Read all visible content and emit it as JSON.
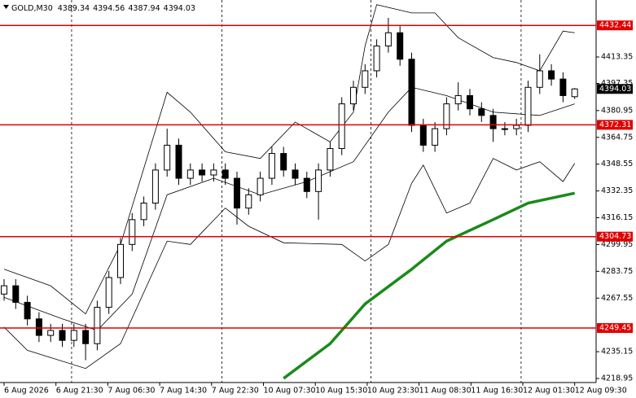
{
  "chart_data": {
    "type": "candlestick",
    "title": "GOLD,M30",
    "open": [
      4270,
      4275,
      4265,
      4255,
      4245,
      4248,
      4242,
      4248,
      4240,
      4262,
      4280,
      4300,
      4315,
      4325,
      4345,
      4360,
      4340,
      4345,
      4342,
      4345,
      4340,
      4322,
      4330,
      4340,
      4355,
      4345,
      4340,
      4332,
      4345,
      4358,
      4385,
      4395,
      4405,
      4420,
      4428,
      4412,
      4372,
      4360,
      4370,
      4385,
      4390,
      4382,
      4378,
      4370,
      4370,
      4372,
      4395,
      4405,
      4400,
      4389.34
    ],
    "high": [
      4279,
      4279,
      4269,
      4259,
      4252,
      4252,
      4252,
      4252,
      4266,
      4284,
      4304,
      4319,
      4329,
      4349,
      4370,
      4364,
      4349,
      4349,
      4349,
      4349,
      4344,
      4334,
      4344,
      4359,
      4359,
      4349,
      4344,
      4349,
      4362,
      4389,
      4399,
      4409,
      4424,
      4437,
      4432,
      4416,
      4376,
      4374,
      4389,
      4398,
      4394,
      4386,
      4382,
      4374,
      4376,
      4399,
      4415,
      4409,
      4404,
      4394.56
    ],
    "low": [
      4266,
      4261,
      4251,
      4241,
      4241,
      4238,
      4238,
      4230,
      4236,
      4258,
      4276,
      4296,
      4311,
      4321,
      4341,
      4336,
      4336,
      4338,
      4338,
      4336,
      4312,
      4318,
      4326,
      4336,
      4341,
      4336,
      4328,
      4315,
      4341,
      4354,
      4381,
      4391,
      4401,
      4416,
      4408,
      4368,
      4356,
      4356,
      4366,
      4381,
      4378,
      4374,
      4362,
      4366,
      4366,
      4368,
      4391,
      4396,
      4386,
      4387.94
    ],
    "close": [
      4275,
      4265,
      4255,
      4245,
      4248,
      4242,
      4248,
      4240,
      4262,
      4280,
      4300,
      4315,
      4325,
      4345,
      4360,
      4340,
      4345,
      4342,
      4345,
      4340,
      4322,
      4330,
      4340,
      4355,
      4345,
      4340,
      4332,
      4345,
      4358,
      4385,
      4395,
      4405,
      4420,
      4428,
      4412,
      4372,
      4360,
      4370,
      4385,
      4390,
      4382,
      4378,
      4370,
      4370,
      4372,
      4395,
      4405,
      4400,
      4390,
      4394.03
    ],
    "bands": [
      {
        "color": "#000000",
        "width": 0.8,
        "x": [
          0,
          4,
          7,
          10,
          14,
          16,
          19,
          22,
          25,
          28,
          30,
          31,
          32,
          35,
          37,
          39,
          42,
          44,
          46,
          48,
          49
        ],
        "values": [
          4285,
          4275,
          4258,
          4300,
          4392,
          4380,
          4356,
          4352,
          4374,
          4362,
          4380,
          4420,
          4445,
          4440,
          4440,
          4425,
          4413,
          4410,
          4405,
          4429,
          4428
        ]
      },
      {
        "color": "#000000",
        "width": 0.8,
        "x": [
          0,
          2,
          7,
          10,
          14,
          16,
          19,
          21,
          24,
          29,
          31,
          33,
          35,
          36,
          38,
          40,
          42,
          44,
          46,
          48,
          49
        ],
        "values": [
          4250,
          4236,
          4225,
          4240,
          4302,
          4300,
          4322,
          4311,
          4301,
          4300,
          4290,
          4300,
          4337,
          4348,
          4319,
          4325,
          4352,
          4345,
          4350,
          4338,
          4349
        ]
      },
      {
        "color": "#000000",
        "width": 0.8,
        "x": [
          0,
          5,
          8,
          11,
          14,
          18,
          22,
          26,
          30,
          33,
          35,
          38,
          42,
          46,
          49
        ],
        "values": [
          4268,
          4255,
          4248,
          4270,
          4330,
          4340,
          4330,
          4338,
          4350,
          4380,
          4395,
          4390,
          4380,
          4378,
          4385
        ]
      },
      {
        "color": "#1a8a1a",
        "width": 3.5,
        "x": [
          24,
          28,
          31,
          35,
          38,
          42,
          45,
          49
        ],
        "values": [
          4219,
          4240,
          4264,
          4285,
          4302,
          4315,
          4325,
          4331
        ]
      }
    ],
    "levels": [
      4432.44,
      4372.31,
      4304.73,
      4249.45
    ],
    "level_color": "#e00000",
    "separators": [
      5.8,
      18.7,
      31.5,
      44.4
    ],
    "x_labels": [
      "6 Aug 2026",
      "6 Aug 21:30",
      "7 Aug 06:30",
      "7 Aug 14:30",
      "7 Aug 22:30",
      "10 Aug 07:30",
      "10 Aug 15:30",
      "10 Aug 23:30",
      "11 Aug 08:30",
      "11 Aug 16:30",
      "12 Aug 01:30",
      "12 Aug 09:30"
    ],
    "xlim": [
      -0.35,
      50.84
    ],
    "ylim": [
      4216.5,
      4447.8
    ],
    "yticks": [
      4413.35,
      4397.35,
      4380.95,
      4364.75,
      4348.55,
      4332.35,
      4316.15,
      4299.95,
      4283.75,
      4267.55,
      4235.15,
      4218.95
    ]
  }
}
